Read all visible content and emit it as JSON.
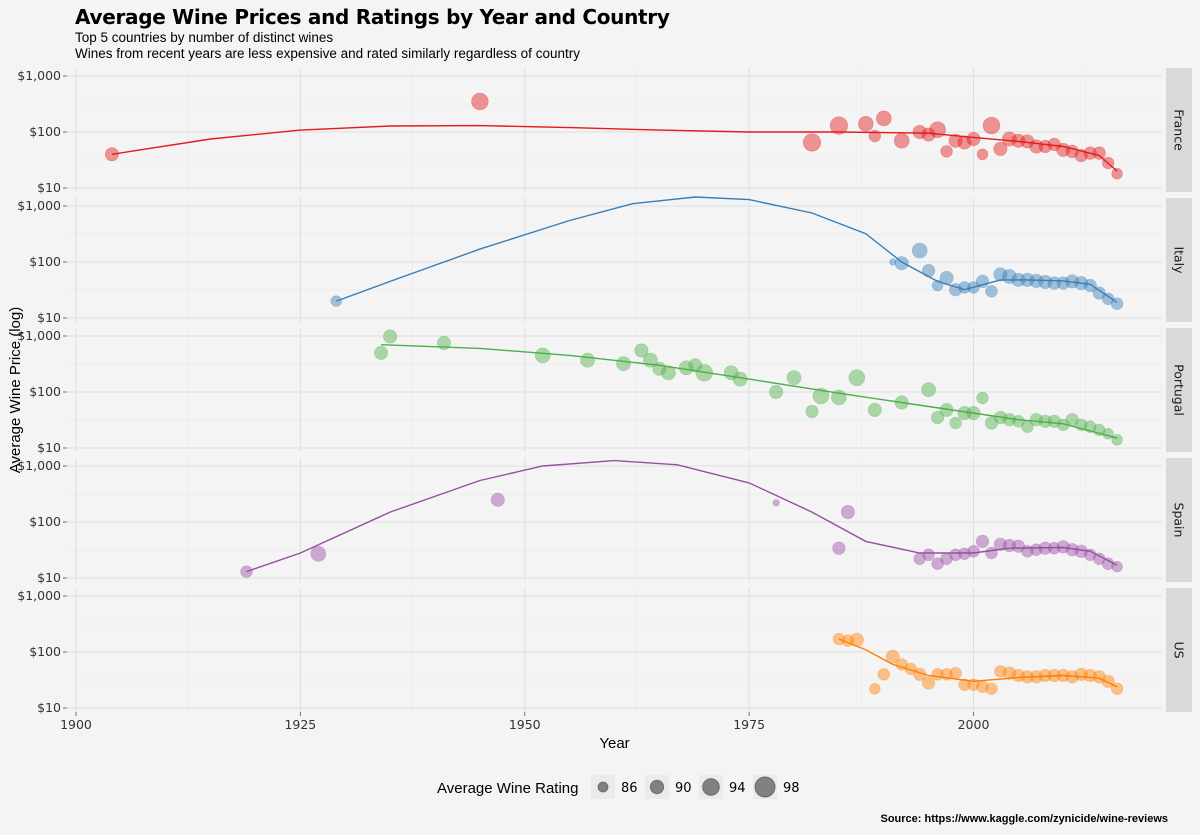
{
  "title": "Average Wine Prices and Ratings by Year and Country",
  "subtitle_line1": "Top 5 countries by number of distinct wines",
  "subtitle_line2": "Wines from recent years are less expensive and rated similarly regardless of country",
  "source": "Source: https://www.kaggle.com/zynicide/wine-reviews",
  "chart_data": {
    "type": "scatter",
    "xlabel": "Year",
    "ylabel": "Average Wine Price (log)",
    "xlim": [
      1899,
      2021
    ],
    "ylim": [
      10,
      1000
    ],
    "y_scale": "log",
    "x_ticks": [
      1900,
      1925,
      1950,
      1975,
      2000
    ],
    "x_tick_labels": [
      "1900",
      "1925",
      "1950",
      "1975",
      "2000"
    ],
    "y_ticks": [
      10,
      100,
      1000
    ],
    "y_tick_labels": [
      "$10",
      "$100",
      "$1,000"
    ],
    "grid": true,
    "facet_by": "country",
    "legend": {
      "title": "Average Wine Rating",
      "placement": "bottom",
      "entries": [
        {
          "label": "86",
          "rating": 86
        },
        {
          "label": "90",
          "rating": 90
        },
        {
          "label": "94",
          "rating": 94
        },
        {
          "label": "98",
          "rating": 98
        }
      ]
    },
    "series": [
      {
        "name": "France",
        "color": "#e41a1c",
        "points": [
          [
            1904,
            40,
            90
          ],
          [
            1945,
            350,
            94
          ],
          [
            1982,
            65,
            95
          ],
          [
            1985,
            130,
            95
          ],
          [
            1988,
            140,
            92
          ],
          [
            1989,
            85,
            88
          ],
          [
            1990,
            175,
            92
          ],
          [
            1992,
            70,
            92
          ],
          [
            1994,
            100,
            90
          ],
          [
            1995,
            90,
            90
          ],
          [
            1996,
            110,
            93
          ],
          [
            1997,
            45,
            88
          ],
          [
            1998,
            70,
            90
          ],
          [
            1999,
            65,
            90
          ],
          [
            2000,
            75,
            90
          ],
          [
            2001,
            40,
            87
          ],
          [
            2002,
            130,
            94
          ],
          [
            2003,
            50,
            90
          ],
          [
            2004,
            75,
            91
          ],
          [
            2005,
            70,
            90
          ],
          [
            2006,
            68,
            90
          ],
          [
            2007,
            55,
            90
          ],
          [
            2008,
            55,
            89
          ],
          [
            2009,
            60,
            89
          ],
          [
            2010,
            48,
            90
          ],
          [
            2011,
            45,
            89
          ],
          [
            2012,
            38,
            89
          ],
          [
            2013,
            42,
            89
          ],
          [
            2014,
            42,
            89
          ],
          [
            2015,
            28,
            88
          ],
          [
            2016,
            18,
            87
          ]
        ],
        "trend": [
          [
            1904,
            40
          ],
          [
            1915,
            75
          ],
          [
            1925,
            108
          ],
          [
            1935,
            128
          ],
          [
            1945,
            130
          ],
          [
            1955,
            120
          ],
          [
            1965,
            108
          ],
          [
            1975,
            100
          ],
          [
            1985,
            100
          ],
          [
            1995,
            95
          ],
          [
            2000,
            80
          ],
          [
            2005,
            68
          ],
          [
            2010,
            55
          ],
          [
            2014,
            38
          ],
          [
            2016,
            20
          ]
        ]
      },
      {
        "name": "Italy",
        "color": "#377eb8",
        "points": [
          [
            1929,
            20,
            87
          ],
          [
            1991,
            100,
            82
          ],
          [
            1992,
            95,
            90
          ],
          [
            1994,
            160,
            92
          ],
          [
            1995,
            70,
            89
          ],
          [
            1996,
            38,
            87
          ],
          [
            1997,
            52,
            90
          ],
          [
            1998,
            32,
            89
          ],
          [
            1999,
            35,
            88
          ],
          [
            2000,
            35,
            88
          ],
          [
            2001,
            45,
            89
          ],
          [
            2002,
            30,
            88
          ],
          [
            2003,
            60,
            90
          ],
          [
            2004,
            55,
            91
          ],
          [
            2005,
            48,
            90
          ],
          [
            2006,
            48,
            90
          ],
          [
            2007,
            46,
            90
          ],
          [
            2008,
            44,
            90
          ],
          [
            2009,
            42,
            89
          ],
          [
            2010,
            42,
            89
          ],
          [
            2011,
            45,
            90
          ],
          [
            2012,
            42,
            90
          ],
          [
            2013,
            38,
            89
          ],
          [
            2014,
            28,
            89
          ],
          [
            2015,
            22,
            88
          ],
          [
            2016,
            18,
            88
          ]
        ],
        "trend": [
          [
            1929,
            20
          ],
          [
            1935,
            45
          ],
          [
            1945,
            170
          ],
          [
            1955,
            550
          ],
          [
            1962,
            1100
          ],
          [
            1969,
            1450
          ],
          [
            1975,
            1300
          ],
          [
            1982,
            750
          ],
          [
            1988,
            320
          ],
          [
            1992,
            100
          ],
          [
            1996,
            45
          ],
          [
            1999,
            32
          ],
          [
            2003,
            48
          ],
          [
            2006,
            48
          ],
          [
            2010,
            46
          ],
          [
            2013,
            40
          ],
          [
            2016,
            19
          ]
        ]
      },
      {
        "name": "Portugal",
        "color": "#4daf4a",
        "points": [
          [
            1934,
            500,
            90
          ],
          [
            1935,
            980,
            90
          ],
          [
            1941,
            750,
            90
          ],
          [
            1952,
            450,
            92
          ],
          [
            1957,
            370,
            91
          ],
          [
            1961,
            320,
            91
          ],
          [
            1963,
            550,
            90
          ],
          [
            1964,
            370,
            91
          ],
          [
            1965,
            260,
            90
          ],
          [
            1966,
            220,
            91
          ],
          [
            1968,
            270,
            91
          ],
          [
            1969,
            300,
            90
          ],
          [
            1970,
            220,
            94
          ],
          [
            1973,
            220,
            91
          ],
          [
            1974,
            170,
            91
          ],
          [
            1978,
            100,
            90
          ],
          [
            1980,
            180,
            91
          ],
          [
            1982,
            45,
            89
          ],
          [
            1983,
            85,
            93
          ],
          [
            1985,
            80,
            92
          ],
          [
            1987,
            180,
            93
          ],
          [
            1989,
            48,
            90
          ],
          [
            1992,
            65,
            90
          ],
          [
            1995,
            110,
            91
          ],
          [
            1996,
            35,
            89
          ],
          [
            1997,
            48,
            90
          ],
          [
            1998,
            28,
            88
          ],
          [
            1999,
            42,
            90
          ],
          [
            2000,
            42,
            90
          ],
          [
            2001,
            78,
            88
          ],
          [
            2002,
            28,
            89
          ],
          [
            2003,
            35,
            89
          ],
          [
            2004,
            32,
            89
          ],
          [
            2005,
            30,
            88
          ],
          [
            2006,
            24,
            88
          ],
          [
            2007,
            32,
            89
          ],
          [
            2008,
            30,
            89
          ],
          [
            2009,
            30,
            89
          ],
          [
            2010,
            26,
            88
          ],
          [
            2011,
            32,
            89
          ],
          [
            2012,
            26,
            88
          ],
          [
            2013,
            24,
            88
          ],
          [
            2014,
            21,
            88
          ],
          [
            2015,
            18,
            87
          ],
          [
            2016,
            14,
            87
          ]
        ],
        "trend": [
          [
            1934,
            700
          ],
          [
            1945,
            600
          ],
          [
            1955,
            450
          ],
          [
            1965,
            300
          ],
          [
            1975,
            170
          ],
          [
            1985,
            95
          ],
          [
            1995,
            55
          ],
          [
            2005,
            32
          ],
          [
            2010,
            27
          ],
          [
            2016,
            15
          ]
        ]
      },
      {
        "name": "Spain",
        "color": "#984ea3",
        "points": [
          [
            1919,
            13,
            88
          ],
          [
            1927,
            27,
            92
          ],
          [
            1947,
            250,
            90
          ],
          [
            1978,
            220,
            82
          ],
          [
            1985,
            34,
            89
          ],
          [
            1986,
            150,
            90
          ],
          [
            1994,
            22,
            88
          ],
          [
            1995,
            26,
            88
          ],
          [
            1996,
            18,
            88
          ],
          [
            1997,
            22,
            88
          ],
          [
            1998,
            26,
            88
          ],
          [
            1999,
            27,
            88
          ],
          [
            2000,
            30,
            88
          ],
          [
            2001,
            45,
            89
          ],
          [
            2002,
            28,
            88
          ],
          [
            2003,
            40,
            89
          ],
          [
            2004,
            38,
            89
          ],
          [
            2005,
            37,
            89
          ],
          [
            2006,
            30,
            88
          ],
          [
            2007,
            32,
            88
          ],
          [
            2008,
            34,
            89
          ],
          [
            2009,
            34,
            88
          ],
          [
            2010,
            36,
            89
          ],
          [
            2011,
            32,
            89
          ],
          [
            2012,
            30,
            89
          ],
          [
            2013,
            26,
            88
          ],
          [
            2014,
            22,
            88
          ],
          [
            2015,
            18,
            88
          ],
          [
            2016,
            16,
            87
          ]
        ],
        "trend": [
          [
            1919,
            13
          ],
          [
            1925,
            28
          ],
          [
            1935,
            150
          ],
          [
            1945,
            550
          ],
          [
            1952,
            1000
          ],
          [
            1960,
            1250
          ],
          [
            1967,
            1050
          ],
          [
            1975,
            500
          ],
          [
            1982,
            150
          ],
          [
            1988,
            45
          ],
          [
            1994,
            28
          ],
          [
            2000,
            28
          ],
          [
            2004,
            34
          ],
          [
            2010,
            35
          ],
          [
            2013,
            30
          ],
          [
            2016,
            17
          ]
        ]
      },
      {
        "name": "US",
        "color": "#ff7f00",
        "points": [
          [
            1985,
            170,
            88
          ],
          [
            1986,
            160,
            88
          ],
          [
            1987,
            165,
            90
          ],
          [
            1989,
            22,
            87
          ],
          [
            1990,
            40,
            88
          ],
          [
            1991,
            82,
            90
          ],
          [
            1992,
            60,
            88
          ],
          [
            1993,
            50,
            88
          ],
          [
            1994,
            40,
            89
          ],
          [
            1995,
            28,
            89
          ],
          [
            1996,
            40,
            88
          ],
          [
            1997,
            40,
            88
          ],
          [
            1998,
            42,
            88
          ],
          [
            1999,
            26,
            88
          ],
          [
            2000,
            26,
            88
          ],
          [
            2001,
            24,
            88
          ],
          [
            2002,
            22,
            88
          ],
          [
            2003,
            45,
            88
          ],
          [
            2004,
            42,
            89
          ],
          [
            2005,
            38,
            89
          ],
          [
            2006,
            36,
            89
          ],
          [
            2007,
            36,
            89
          ],
          [
            2008,
            38,
            89
          ],
          [
            2009,
            38,
            89
          ],
          [
            2010,
            38,
            89
          ],
          [
            2011,
            36,
            89
          ],
          [
            2012,
            40,
            89
          ],
          [
            2013,
            38,
            89
          ],
          [
            2014,
            36,
            89
          ],
          [
            2015,
            30,
            89
          ],
          [
            2016,
            22,
            88
          ]
        ],
        "trend": [
          [
            1985,
            170
          ],
          [
            1988,
            110
          ],
          [
            1991,
            60
          ],
          [
            1995,
            38
          ],
          [
            2000,
            30
          ],
          [
            2005,
            35
          ],
          [
            2010,
            38
          ],
          [
            2014,
            34
          ],
          [
            2016,
            24
          ]
        ]
      }
    ]
  }
}
